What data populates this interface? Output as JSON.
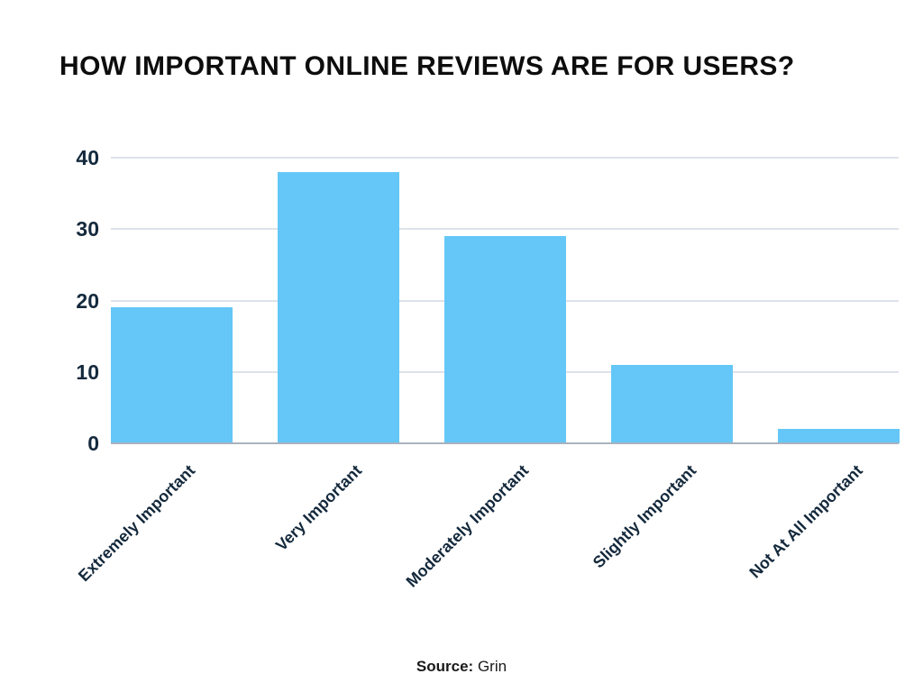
{
  "chart_data": {
    "type": "bar",
    "title": "HOW IMPORTANT ONLINE REVIEWS ARE FOR USERS?",
    "categories": [
      "Extremely Important",
      "Very Important",
      "Moderately Important",
      "Slightly Important",
      "Not At All Important"
    ],
    "values": [
      19,
      38,
      29,
      11,
      2
    ],
    "xlabel": "",
    "ylabel": "",
    "ylim": [
      0,
      40
    ],
    "yticks": [
      0,
      10,
      20,
      30,
      40
    ],
    "grid": "horizontal",
    "legend": "none",
    "x_tick_rotation_deg": -45,
    "source": {
      "label": "Source:",
      "name": "Grin"
    }
  },
  "colors": {
    "bar": "#64c7f7",
    "grid": "#dde3ea",
    "baseline": "#aab2be",
    "tick_text": "#14293c",
    "title_text": "#0d0d0d"
  }
}
